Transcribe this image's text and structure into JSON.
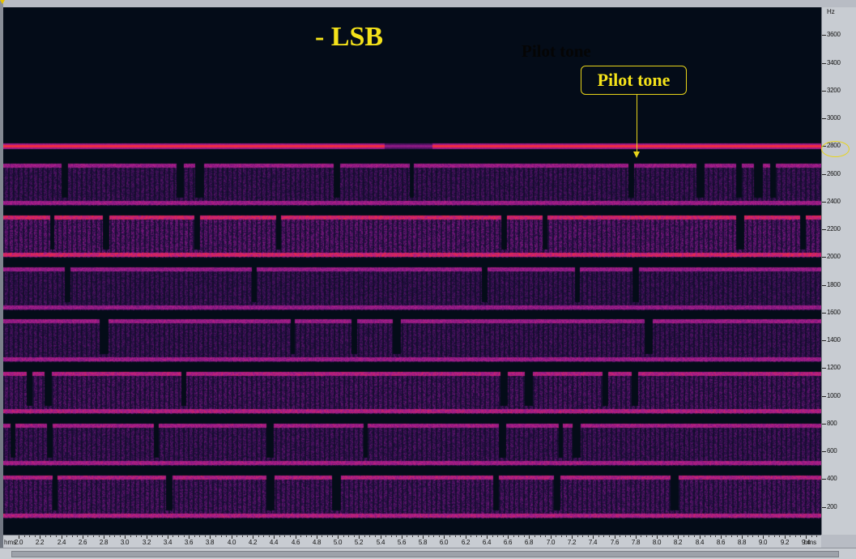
{
  "chart_data": {
    "type": "heatmap",
    "title": "- LSB",
    "ghost_label": "Pilot tone",
    "annotation": {
      "label": "Pilot tone",
      "points_to": 2800,
      "highlighted_tick": "2800"
    },
    "yaxis": {
      "unit": "Hz",
      "lim": [
        0,
        3800
      ],
      "ticks": [
        "3600",
        "3400",
        "3200",
        "3000",
        "2800",
        "2600",
        "2400",
        "2200",
        "2000",
        "1800",
        "1600",
        "1400",
        "1200",
        "1000",
        "800",
        "600",
        "400",
        "200"
      ]
    },
    "xaxis": {
      "unit": "hms",
      "lim": [
        1.855,
        9.545
      ],
      "ticks": [
        "2.0",
        "2.2",
        "2.4",
        "2.6",
        "2.8",
        "3.0",
        "3.2",
        "3.4",
        "3.6",
        "3.8",
        "4.0",
        "4.2",
        "4.4",
        "4.6",
        "4.8",
        "5.0",
        "5.2",
        "5.4",
        "5.6",
        "5.8",
        "6.0",
        "6.2",
        "6.4",
        "6.6",
        "6.8",
        "7.0",
        "7.2",
        "7.4",
        "7.6",
        "7.8",
        "8.0",
        "8.2",
        "8.4",
        "8.6",
        "8.8",
        "9.0",
        "9.2",
        "9.4"
      ]
    },
    "pilot_tone_hz": 2800,
    "bands": [
      {
        "center_hz": 2525,
        "low_hz": 2375,
        "high_hz": 2675,
        "intensity": 0.62
      },
      {
        "center_hz": 2150,
        "low_hz": 2000,
        "high_hz": 2300,
        "intensity": 0.82
      },
      {
        "center_hz": 1775,
        "low_hz": 1625,
        "high_hz": 1925,
        "intensity": 0.6
      },
      {
        "center_hz": 1400,
        "low_hz": 1250,
        "high_hz": 1550,
        "intensity": 0.62
      },
      {
        "center_hz": 1025,
        "low_hz": 875,
        "high_hz": 1175,
        "intensity": 0.7
      },
      {
        "center_hz": 650,
        "low_hz": 500,
        "high_hz": 800,
        "intensity": 0.65
      },
      {
        "center_hz": 275,
        "low_hz": 125,
        "high_hz": 425,
        "intensity": 0.7
      }
    ],
    "colors": {
      "background": "#040c18",
      "low": "#3a0f52",
      "mid": "#a01a90",
      "high": "#ff2a30",
      "annotation": "#f5e31a"
    }
  }
}
